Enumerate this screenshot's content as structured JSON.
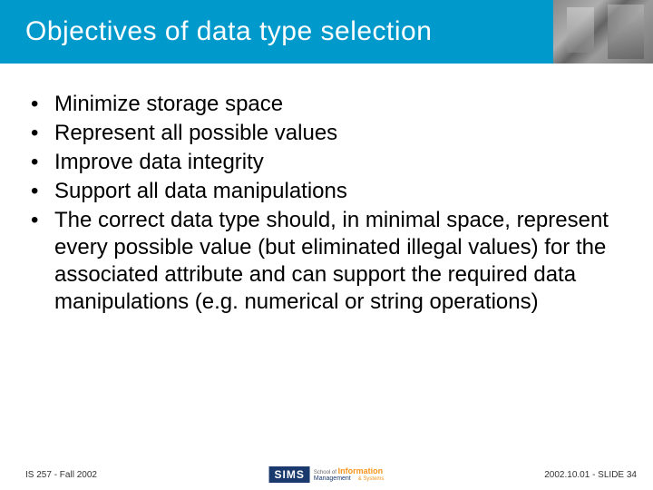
{
  "header": {
    "title": "Objectives of data type selection",
    "title_color": "#ffffff",
    "bg_color": "#0099cc"
  },
  "bullets": [
    "Minimize storage space",
    "Represent all possible values",
    "Improve data integrity",
    "Support all data manipulations",
    "The correct data type should, in minimal space, represent every possible value (but eliminated illegal values) for the associated attribute and can support the required data manipulations (e.g. numerical or string operations)"
  ],
  "footer": {
    "left": "IS 257 - Fall 2002",
    "logo_text": "SIMS",
    "logo_sub1": "School of",
    "logo_sub2": "Information",
    "logo_sub3": "Management",
    "logo_sub4": "& Systems",
    "right": "2002.10.01 - SLIDE 34"
  },
  "style": {
    "body_fontsize": 24,
    "footer_fontsize": 10,
    "title_fontsize": 30,
    "text_color": "#000000",
    "bg_color": "#ffffff"
  }
}
